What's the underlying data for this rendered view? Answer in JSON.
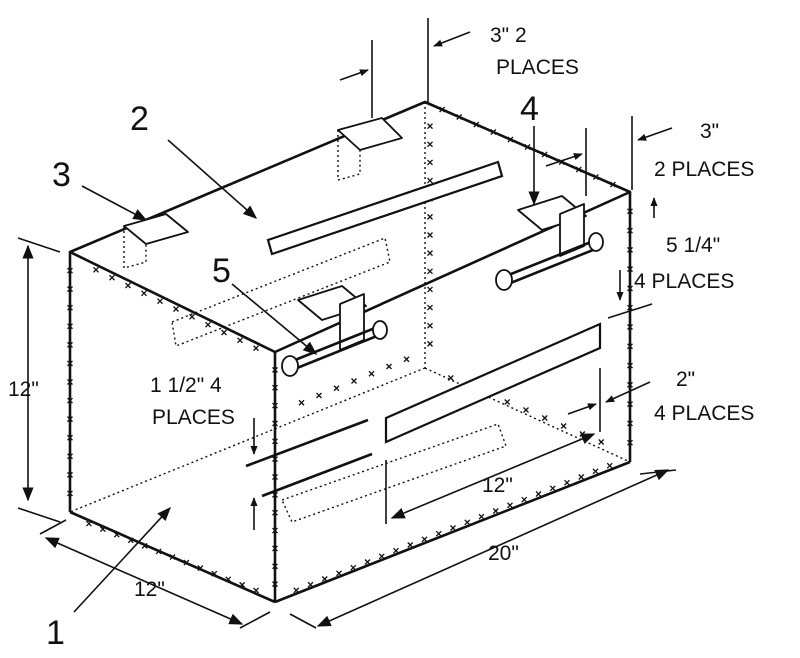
{
  "callouts": {
    "part1": "1",
    "part2": "2",
    "part3": "3",
    "part4": "4",
    "part5": "5"
  },
  "dimensions": {
    "top_tab_line1": "3\" 2",
    "top_tab_line2": "PLACES",
    "right_tab_line1": "3\"",
    "right_tab_line2": "2 PLACES",
    "bracket_spacing_line1": "5 1/4\"",
    "bracket_spacing_line2": "4 PLACES",
    "slot_width_line1": "2\"",
    "slot_width_line2": "4 PLACES",
    "slot_offset_line1": "1 1/2\" 4",
    "slot_offset_line2": "PLACES",
    "height": "12\"",
    "depth": "12\"",
    "length": "20\"",
    "slot_length": "12\""
  },
  "colors": {
    "ink": "#111111",
    "paper": "#ffffff"
  }
}
